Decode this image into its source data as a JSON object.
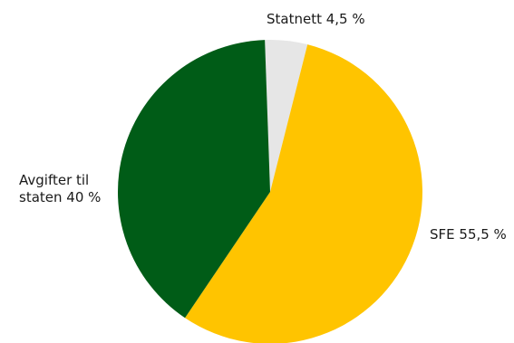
{
  "chart_data": {
    "type": "pie",
    "start_angle_deg": -2,
    "direction": "clockwise",
    "slices": [
      {
        "key": "statnett",
        "value": 4.5,
        "color": "#e6e6e6",
        "label_lines": [
          "Statnett 4,5 %"
        ]
      },
      {
        "key": "sfe",
        "value": 55.5,
        "color": "#ffc400",
        "label_lines": [
          "SFE 55,5 %"
        ]
      },
      {
        "key": "avgifter",
        "value": 40,
        "color": "#005c17",
        "label_lines": [
          "Avgifter til",
          "staten 40 %"
        ]
      }
    ]
  }
}
